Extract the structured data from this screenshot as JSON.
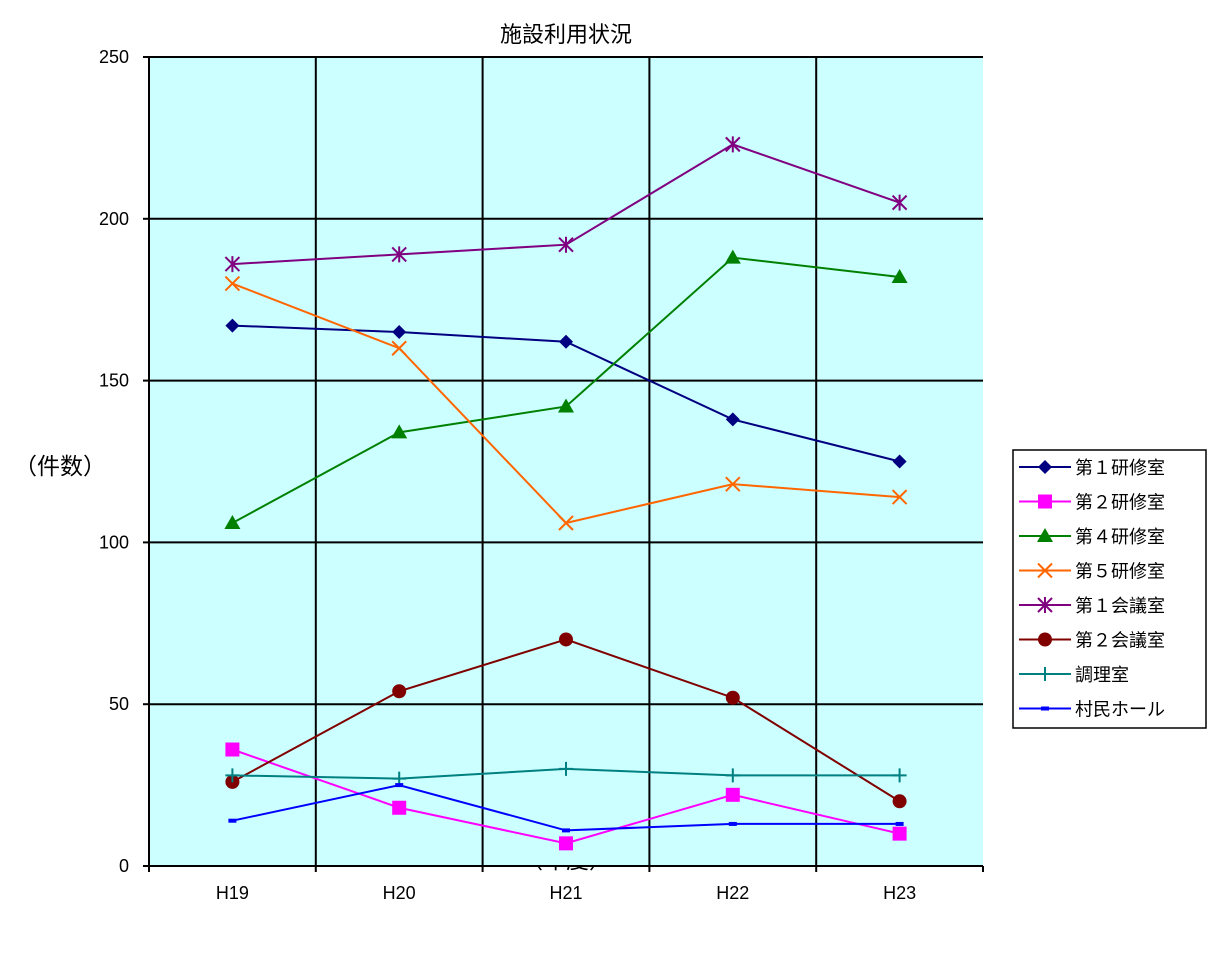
{
  "chart_data": {
    "type": "line",
    "title": "施設利用状況",
    "xlabel": "（年度）",
    "ylabel": "（件数）",
    "categories": [
      "H19",
      "H20",
      "H21",
      "H22",
      "H23"
    ],
    "ylim": [
      0,
      250
    ],
    "yticks": [
      0,
      50,
      100,
      150,
      200,
      250
    ],
    "grid": true,
    "legend_position": "right",
    "plot_background": "#ccffff",
    "series": [
      {
        "name": "第１研修室",
        "color": "#000080",
        "marker": "diamond",
        "values": [
          167,
          165,
          162,
          138,
          125
        ]
      },
      {
        "name": "第２研修室",
        "color": "#ff00ff",
        "marker": "square",
        "values": [
          36,
          18,
          7,
          22,
          10
        ]
      },
      {
        "name": "第４研修室",
        "color": "#008000",
        "marker": "triangle",
        "values": [
          106,
          134,
          142,
          188,
          182
        ]
      },
      {
        "name": "第５研修室",
        "color": "#ff6600",
        "marker": "x",
        "values": [
          180,
          160,
          106,
          118,
          114
        ]
      },
      {
        "name": "第１会議室",
        "color": "#800080",
        "marker": "star",
        "values": [
          186,
          189,
          192,
          223,
          205
        ]
      },
      {
        "name": "第２会議室",
        "color": "#800000",
        "marker": "circle",
        "values": [
          26,
          54,
          70,
          52,
          20
        ]
      },
      {
        "name": "調理室",
        "color": "#008080",
        "marker": "plus",
        "values": [
          28,
          27,
          30,
          28,
          28
        ]
      },
      {
        "name": "村民ホール",
        "color": "#0000ff",
        "marker": "dash",
        "values": [
          14,
          25,
          11,
          13,
          13
        ]
      }
    ]
  }
}
